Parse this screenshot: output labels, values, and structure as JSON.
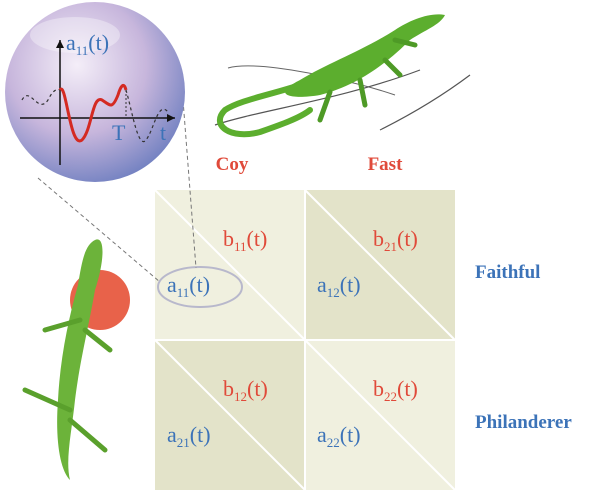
{
  "bubble": {
    "label": [
      "a",
      "11",
      "(t)"
    ],
    "axis_t": "T",
    "axis_x": "t"
  },
  "columns": [
    "Coy",
    "Fast"
  ],
  "rows": [
    "Faithful",
    "Philanderer"
  ],
  "cells": [
    [
      {
        "b": [
          "b",
          "11",
          "(t)"
        ],
        "a": [
          "a",
          "11",
          "(t)"
        ]
      },
      {
        "b": [
          "b",
          "21",
          "(t)"
        ],
        "a": [
          "a",
          "12",
          "(t)"
        ]
      }
    ],
    [
      {
        "b": [
          "b",
          "12",
          "(t)"
        ],
        "a": [
          "a",
          "21",
          "(t)"
        ]
      },
      {
        "b": [
          "b",
          "22",
          "(t)"
        ],
        "a": [
          "a",
          "22",
          "(t)"
        ]
      }
    ]
  ]
}
